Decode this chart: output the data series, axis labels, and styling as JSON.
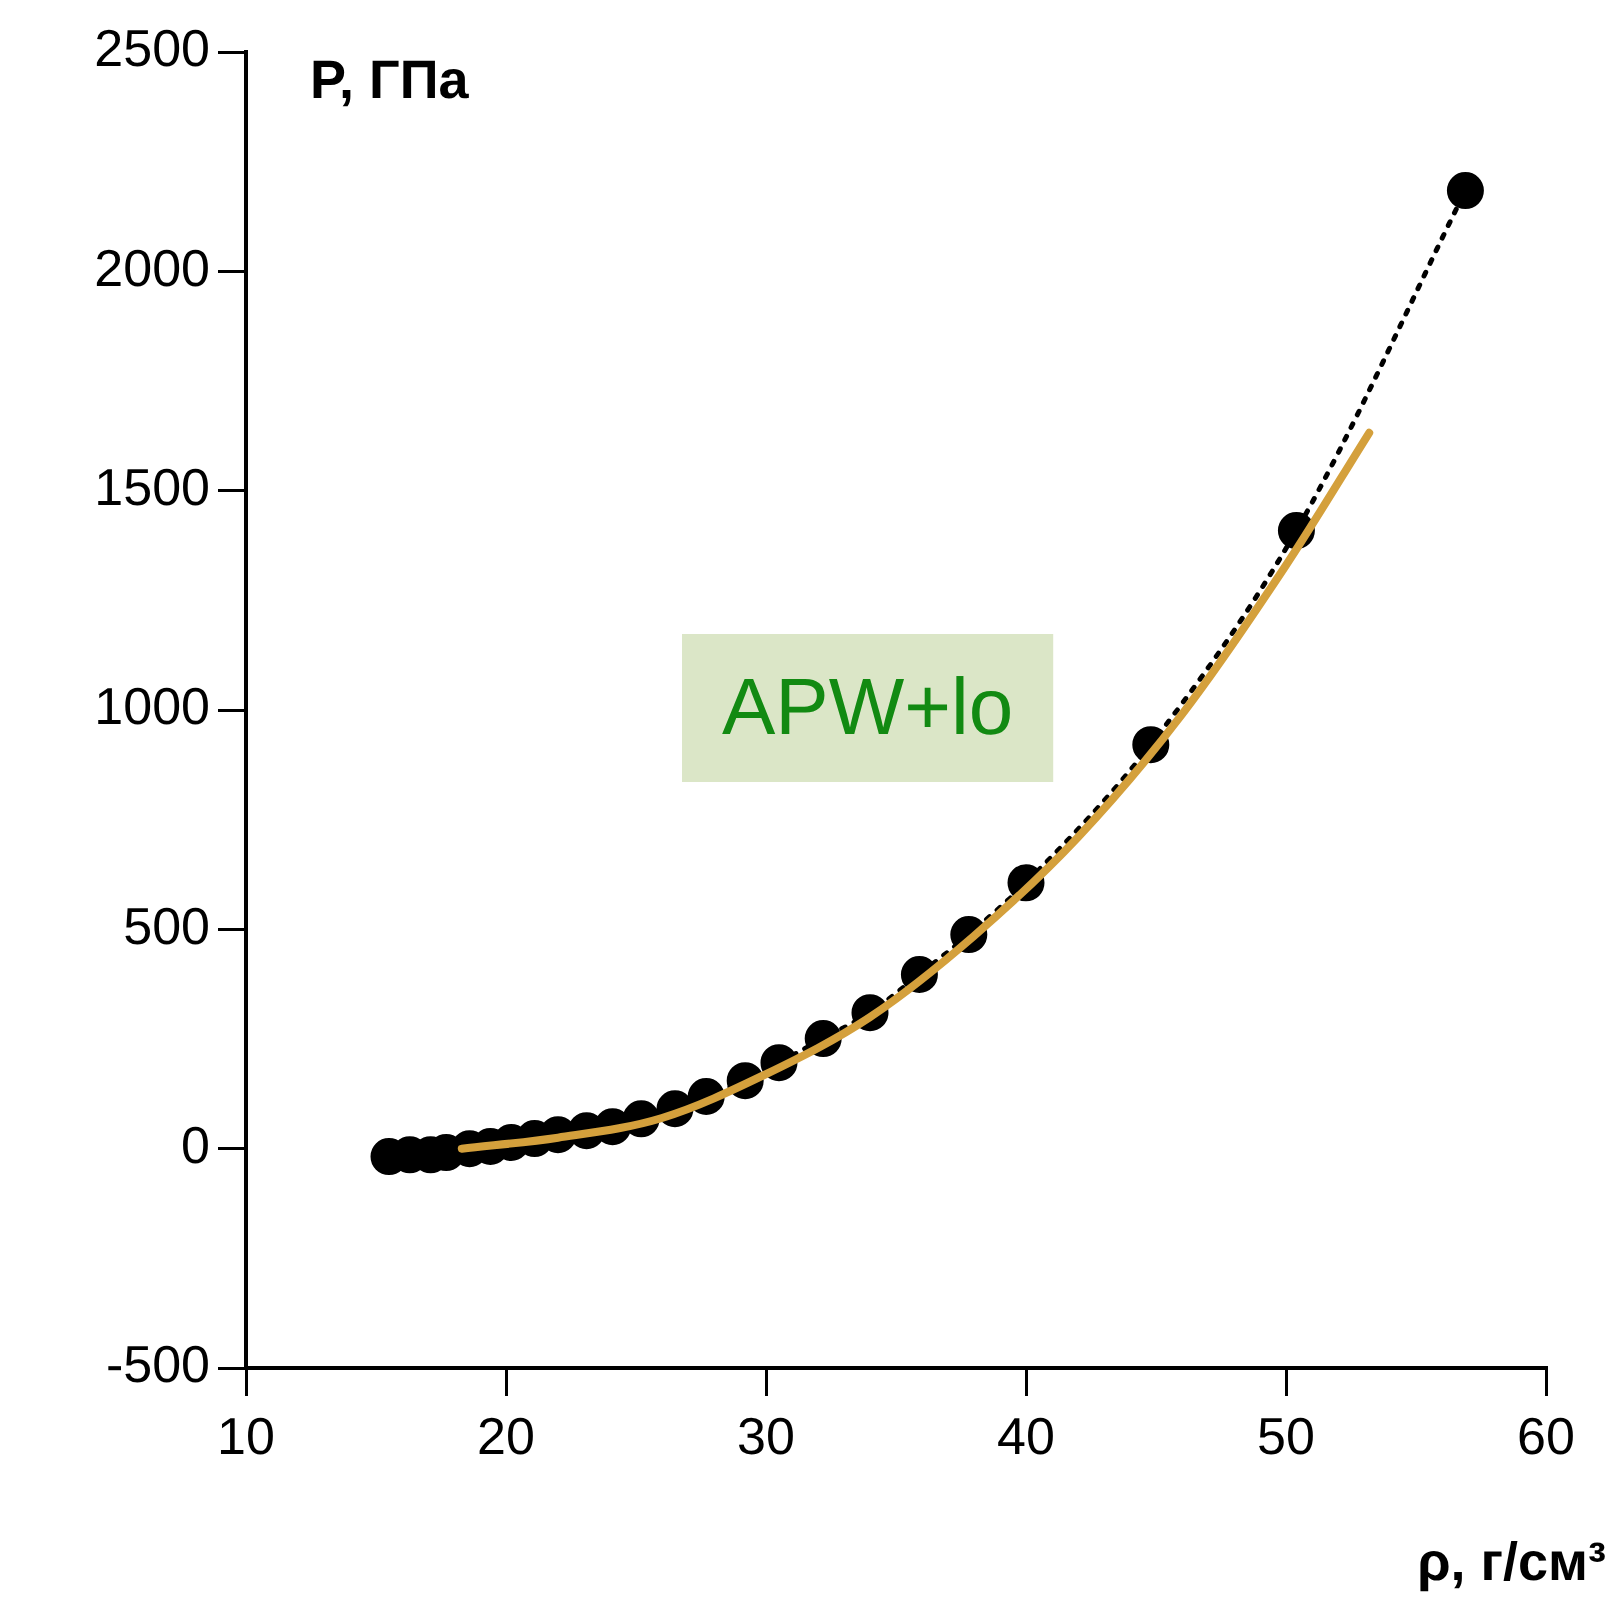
{
  "chart_data": {
    "type": "line",
    "xlabel": "ρ, г/см³",
    "ylabel": "P, ГПа",
    "xlim": [
      10,
      60
    ],
    "xticks": [
      10,
      20,
      30,
      40,
      50,
      60
    ],
    "ylim": [
      -500,
      2500
    ],
    "yticks": [
      -500,
      0,
      500,
      1000,
      1500,
      2000,
      2500
    ],
    "grid": false,
    "legend": false,
    "series": [
      {
        "name": "APW+lo",
        "color": "#000000",
        "marker": "circle",
        "line_style": "dotted",
        "x": [
          15.5,
          16.3,
          17.1,
          17.7,
          18.6,
          19.4,
          20.2,
          21.1,
          22.0,
          23.1,
          24.1,
          25.2,
          26.5,
          27.7,
          29.2,
          30.5,
          32.2,
          34.0,
          35.9,
          37.8,
          40.0,
          44.8,
          50.4,
          56.9
        ],
        "values": [
          -18,
          -14,
          -14,
          -9,
          0,
          5,
          14,
          23,
          32,
          41,
          50,
          68,
          91,
          119,
          155,
          196,
          251,
          310,
          397,
          488,
          606,
          921,
          1409,
          2184
        ]
      },
      {
        "type": "line",
        "color": "#d4a03c",
        "marker": "none",
        "line_style": "solid",
        "x": [
          18.3,
          22,
          26,
          30,
          34,
          38,
          42,
          46,
          50,
          53.2
        ],
        "values": [
          0,
          25,
          70,
          170,
          300,
          485,
          710,
          990,
          1330,
          1632
        ]
      }
    ]
  }
}
